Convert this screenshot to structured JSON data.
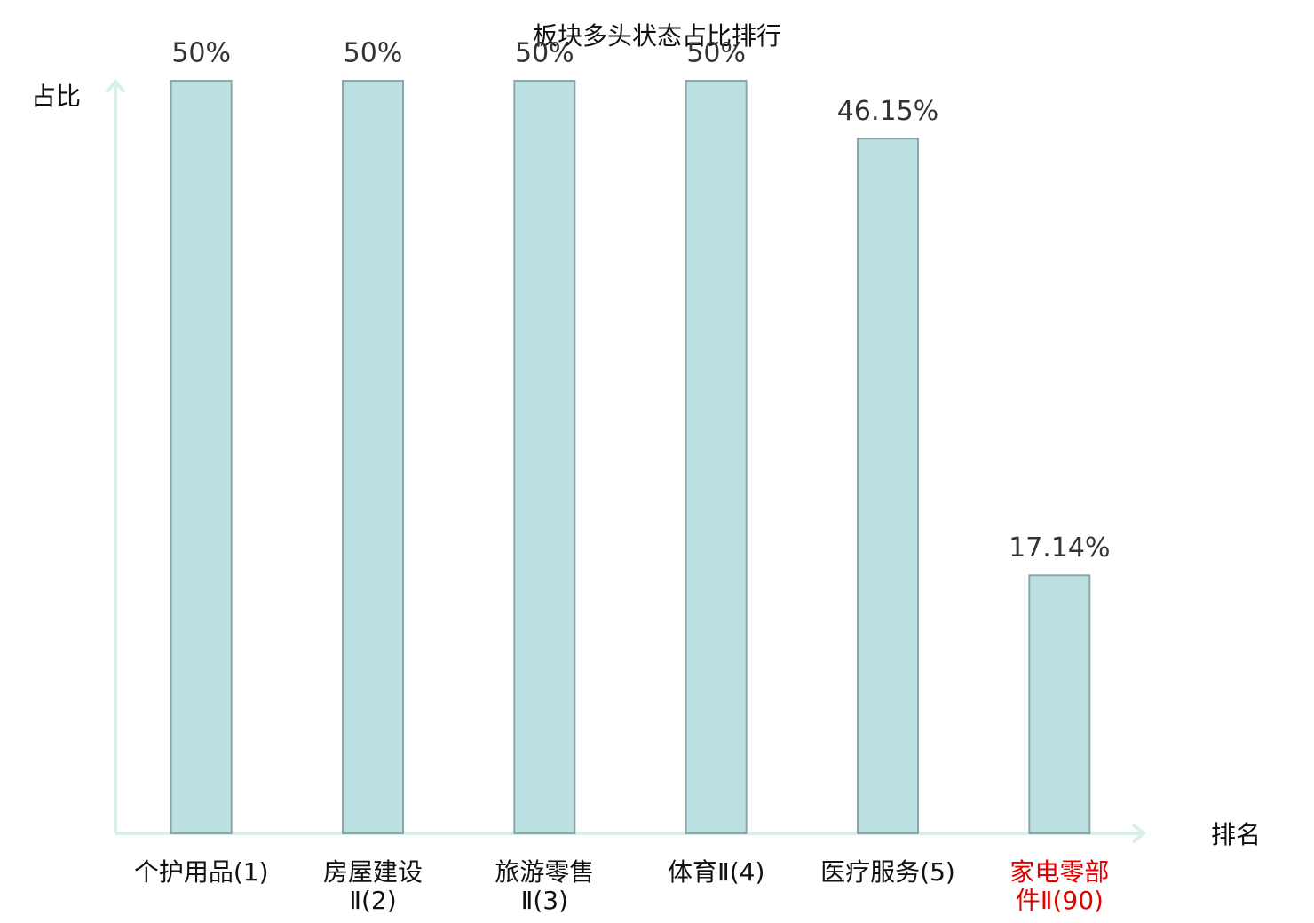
{
  "chart_data": {
    "type": "bar",
    "title": "板块多头状态占比排行",
    "y_axis_label": "占比",
    "x_axis_label": "排名",
    "categories": [
      "个护用品(1)",
      "房屋建设Ⅱ(2)",
      "旅游零售Ⅱ(3)",
      "体育Ⅱ(4)",
      "医疗服务(5)",
      "家电零部件Ⅱ(90)"
    ],
    "values": [
      50,
      50,
      50,
      50,
      46.15,
      17.14
    ],
    "value_labels": [
      "50%",
      "50%",
      "50%",
      "50%",
      "46.15%",
      "17.14%"
    ],
    "color": "#bde0e3",
    "edge_color": "#8aa8ab",
    "highlight": {
      "index": 5,
      "color": "#e00000"
    },
    "ylim": [
      0,
      50
    ]
  }
}
